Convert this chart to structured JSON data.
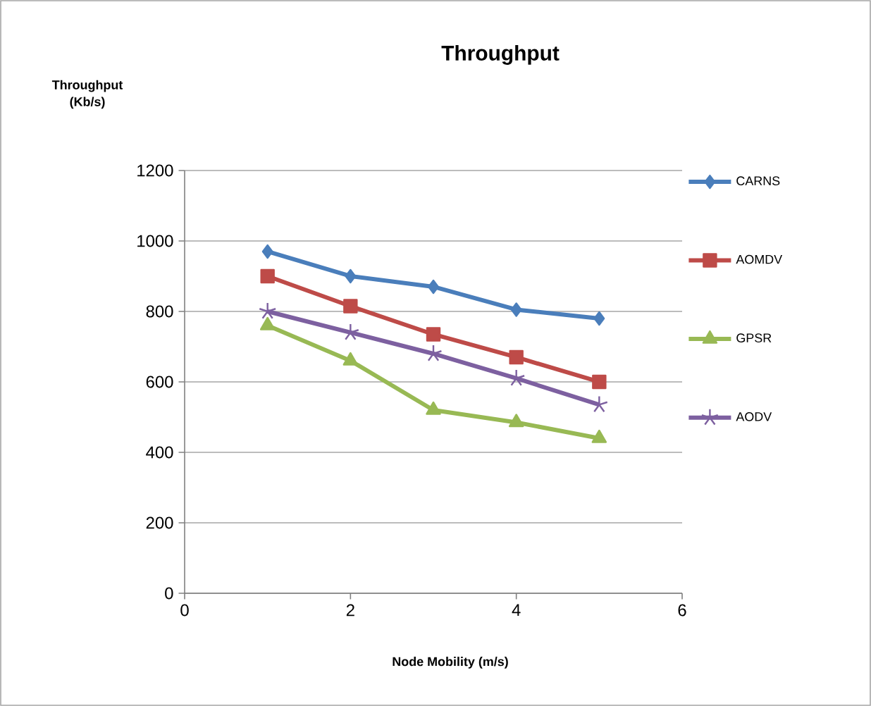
{
  "chart_data": {
    "type": "line",
    "title": "Throughput",
    "xlabel": "Node Mobility (m/s)",
    "ylabel": "Throughput (Kb/s)",
    "x": [
      1,
      2,
      3,
      4,
      5
    ],
    "series": [
      {
        "name": "CARNS",
        "color": "#4a7ebb",
        "marker": "diamond",
        "values": [
          970,
          900,
          870,
          805,
          780
        ]
      },
      {
        "name": "AOMDV",
        "color": "#be4b48",
        "marker": "square",
        "values": [
          900,
          815,
          735,
          670,
          600
        ]
      },
      {
        "name": "GPSR",
        "color": "#98b954",
        "marker": "triangle",
        "values": [
          760,
          660,
          520,
          485,
          440
        ]
      },
      {
        "name": "AODV",
        "color": "#7d60a0",
        "marker": "cross",
        "values": [
          800,
          740,
          680,
          610,
          535
        ]
      }
    ],
    "xlim": [
      0,
      6
    ],
    "xticks": [
      0,
      2,
      4,
      6
    ],
    "ylim": [
      0,
      1200
    ],
    "yticks": [
      0,
      200,
      400,
      600,
      800,
      1000,
      1200
    ],
    "grid": "y",
    "legend": "right"
  }
}
